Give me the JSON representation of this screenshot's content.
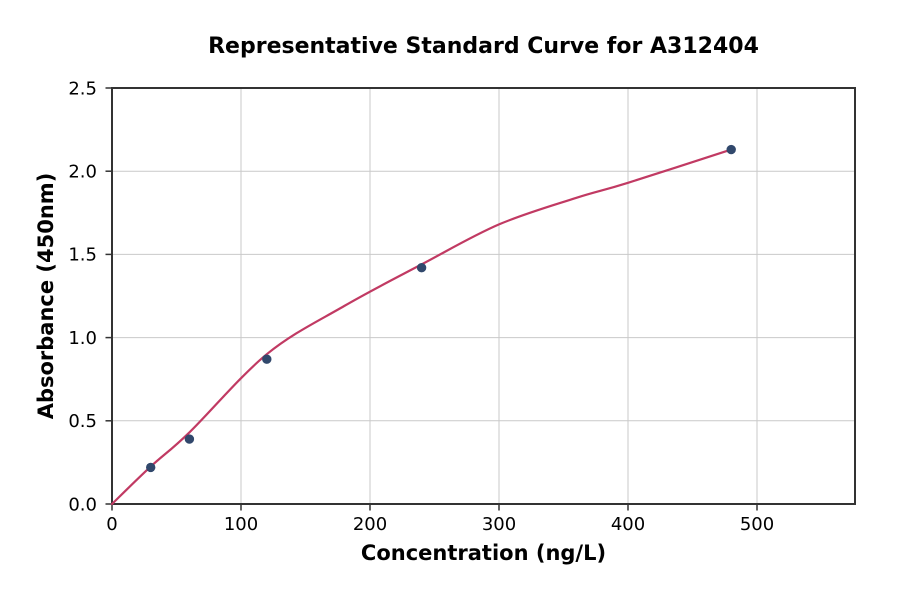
{
  "chart_data": {
    "type": "scatter",
    "title": "Representative Standard Curve for A312404",
    "xlabel": "Concentration (ng/L)",
    "ylabel": "Absorbance (450nm)",
    "xlim": [
      0,
      576
    ],
    "ylim": [
      0,
      2.5
    ],
    "x_ticks": {
      "values": [
        0,
        100,
        200,
        300,
        400,
        500
      ],
      "labels": [
        "0",
        "100",
        "200",
        "300",
        "400",
        "500"
      ]
    },
    "y_ticks": {
      "values": [
        0,
        0.5,
        1.0,
        1.5,
        2.0,
        2.5
      ],
      "labels": [
        "0.0",
        "0.5",
        "1.0",
        "1.5",
        "2.0",
        "2.5"
      ]
    },
    "grid": true,
    "legend": "none",
    "series": [
      {
        "name": "standard-points",
        "kind": "scatter",
        "x": [
          30,
          60,
          120,
          240,
          480
        ],
        "y": [
          0.22,
          0.39,
          0.87,
          1.42,
          2.13
        ],
        "color": "#31486C",
        "marker_radius": 4.7
      },
      {
        "name": "fit-curve",
        "kind": "line",
        "x": [
          0,
          30,
          60,
          120,
          180,
          240,
          300,
          360,
          400,
          480
        ],
        "y": [
          0.0,
          0.225,
          0.43,
          0.9,
          1.19,
          1.44,
          1.68,
          1.84,
          1.93,
          2.13
        ],
        "color": "#C13A63",
        "line_width": 2.2
      }
    ],
    "colors": {
      "grid": "#C9C9C9",
      "spine": "#333333",
      "tick_text": "#000000",
      "background": "#FFFFFF"
    }
  }
}
